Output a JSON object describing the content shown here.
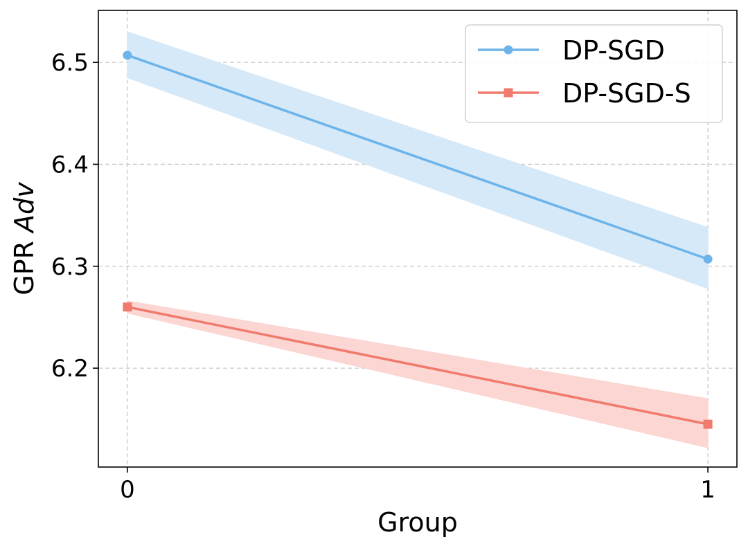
{
  "chart_data": {
    "type": "line",
    "title": "",
    "xlabel": "Group",
    "ylabel_prefix": "GPR ",
    "ylabel_italic": "Adv",
    "x": [
      0,
      1
    ],
    "x_tick_labels": [
      "0",
      "1"
    ],
    "y_ticks": [
      6.2,
      6.3,
      6.4,
      6.5
    ],
    "y_tick_labels": [
      "6.2",
      "6.3",
      "6.4",
      "6.5"
    ],
    "xlim": [
      -0.05,
      1.05
    ],
    "ylim": [
      6.103,
      6.551
    ],
    "grid": true,
    "legend_position": "top-right",
    "series": [
      {
        "name": "DP-SGD",
        "values": [
          6.507,
          6.307
        ],
        "band_lower": [
          6.485,
          6.278
        ],
        "band_upper": [
          6.53,
          6.338
        ],
        "color": "#6db4ea",
        "band_color": "#d4e8f8",
        "marker": "circle"
      },
      {
        "name": "DP-SGD-S",
        "values": [
          6.26,
          6.145
        ],
        "band_lower": [
          6.254,
          6.122
        ],
        "band_upper": [
          6.266,
          6.17
        ],
        "color": "#f07b6d",
        "band_color": "#fbd4d0",
        "marker": "square"
      }
    ]
  }
}
